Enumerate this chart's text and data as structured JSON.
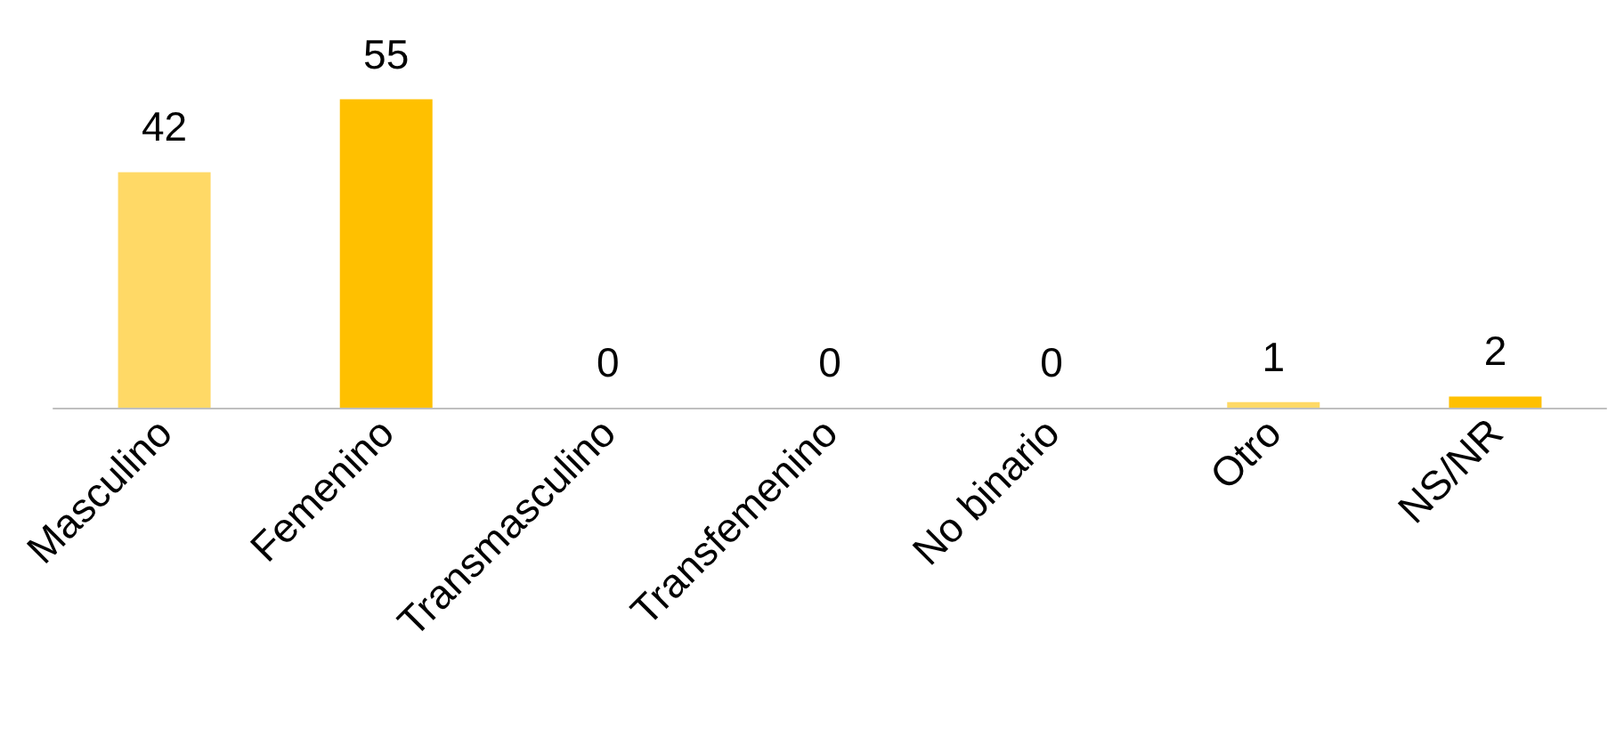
{
  "chart_data": {
    "type": "bar",
    "categories": [
      "Masculino",
      "Femenino",
      "Transmasculino",
      "Transfemenino",
      "No binario",
      "Otro",
      "NS/NR"
    ],
    "values": [
      42,
      55,
      0,
      0,
      0,
      1,
      2
    ],
    "colors": [
      "#ffd966",
      "#ffc000",
      "#ffc000",
      "#ffc000",
      "#ffd966",
      "#ffd966",
      "#ffc000"
    ],
    "data_labels": true
  }
}
